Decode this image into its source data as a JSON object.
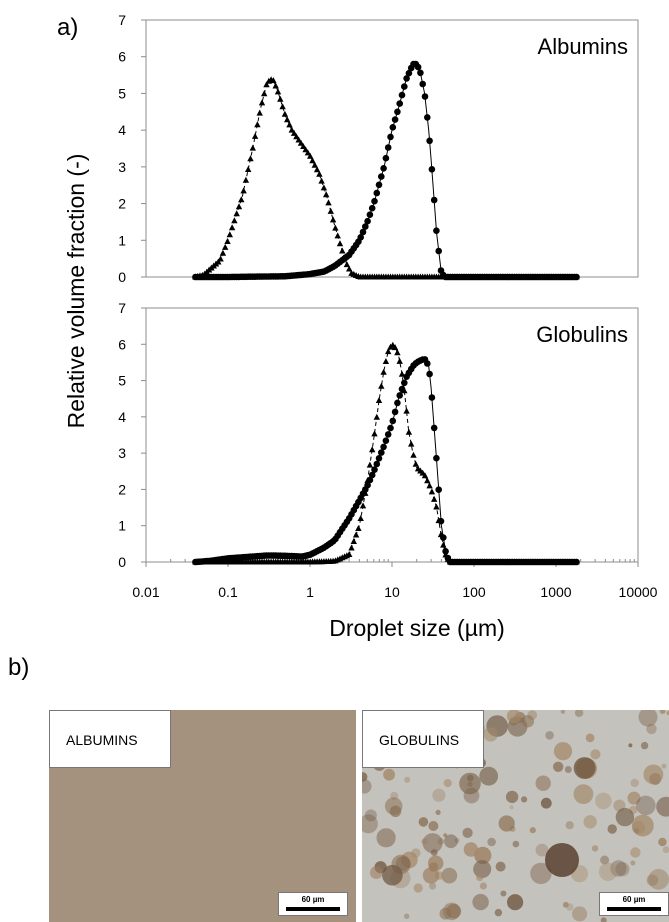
{
  "panel_labels": {
    "a": "a)",
    "b": "b)"
  },
  "chart_data": [
    {
      "type": "scatter",
      "title": "Albumins",
      "xlabel": "Droplet size (µm)",
      "ylabel": "Relative volume fraction (-)",
      "x_scale": "log",
      "xlim": [
        0.01,
        10000
      ],
      "ylim": [
        0,
        7
      ],
      "yticks": [
        "0",
        "1",
        "2",
        "3",
        "4",
        "5",
        "6",
        "7"
      ],
      "grid": false,
      "series": [
        {
          "marker": "triangle",
          "line": "dashed",
          "x": [
            0.04,
            0.05,
            0.08,
            0.1,
            0.15,
            0.2,
            0.25,
            0.3,
            0.35,
            0.4,
            0.5,
            0.6,
            0.8,
            1.0,
            1.3,
            1.6,
            2.0,
            2.4,
            2.8,
            3.2,
            4.0,
            6.0,
            10,
            100,
            1000,
            1800
          ],
          "y": [
            0,
            0.05,
            0.45,
            1.0,
            2.2,
            3.5,
            4.6,
            5.3,
            5.4,
            5.1,
            4.4,
            4.0,
            3.6,
            3.3,
            2.8,
            2.2,
            1.4,
            0.8,
            0.35,
            0.1,
            0,
            0,
            0,
            0,
            0,
            0
          ]
        },
        {
          "marker": "circle",
          "line": "solid",
          "x": [
            0.04,
            0.1,
            0.5,
            1.0,
            1.5,
            2.0,
            3.0,
            4.0,
            5.0,
            6.0,
            8.0,
            10,
            12,
            15,
            18,
            20,
            22,
            25,
            28,
            30,
            35,
            40,
            45,
            50,
            100,
            1000,
            1800
          ],
          "y": [
            0,
            0,
            0.02,
            0.08,
            0.15,
            0.3,
            0.6,
            1.0,
            1.5,
            2.0,
            3.0,
            4.0,
            4.6,
            5.4,
            5.8,
            5.8,
            5.6,
            5.0,
            4.0,
            3.2,
            1.2,
            0.1,
            0,
            0,
            0,
            0,
            0
          ]
        }
      ]
    },
    {
      "type": "scatter",
      "title": "Globulins",
      "xlabel": "Droplet size (µm)",
      "ylabel": "Relative volume fraction (-)",
      "x_scale": "log",
      "xlim": [
        0.01,
        10000
      ],
      "ylim": [
        0,
        7
      ],
      "yticks": [
        "0",
        "1",
        "2",
        "3",
        "4",
        "5",
        "6",
        "7"
      ],
      "xticks": [
        "0.01",
        "0.1",
        "1",
        "10",
        "100",
        "1000",
        "10000"
      ],
      "grid": false,
      "series": [
        {
          "marker": "triangle",
          "line": "dashed",
          "x": [
            0.04,
            1.0,
            2.0,
            3.0,
            4.0,
            5.0,
            6.0,
            7.0,
            8.0,
            9.0,
            10,
            11,
            12,
            13,
            14,
            15,
            16,
            18,
            20,
            25,
            30,
            35,
            40,
            45,
            50,
            100,
            1000,
            1800
          ],
          "y": [
            0,
            0,
            0.02,
            0.2,
            1.0,
            2.2,
            3.4,
            4.5,
            5.3,
            5.8,
            6.0,
            5.9,
            5.7,
            5.3,
            4.8,
            4.2,
            3.6,
            3.0,
            2.6,
            2.4,
            2.0,
            1.5,
            0.7,
            0.2,
            0,
            0,
            0,
            0
          ]
        },
        {
          "marker": "circle",
          "line": "solid",
          "x": [
            0.04,
            0.06,
            0.1,
            0.2,
            0.3,
            0.5,
            0.8,
            1.0,
            1.5,
            2.0,
            3.0,
            4.0,
            5.0,
            6.0,
            8.0,
            10,
            12,
            15,
            18,
            20,
            22,
            25,
            28,
            30,
            35,
            40,
            45,
            50,
            100,
            1000,
            1800
          ],
          "y": [
            0,
            0.03,
            0.1,
            0.15,
            0.18,
            0.17,
            0.15,
            0.2,
            0.4,
            0.6,
            1.2,
            1.7,
            2.1,
            2.5,
            3.2,
            3.8,
            4.5,
            5.1,
            5.4,
            5.5,
            5.55,
            5.6,
            5.4,
            4.8,
            2.8,
            1.0,
            0.3,
            0,
            0,
            0,
            0
          ]
        }
      ]
    }
  ],
  "micrographs": [
    {
      "tag": "ALBUMINS",
      "scale": "60 µm",
      "bg": "#a4927e"
    },
    {
      "tag": "GLOBULINS",
      "scale": "60 µm",
      "bg": "#c3c2bc"
    }
  ]
}
